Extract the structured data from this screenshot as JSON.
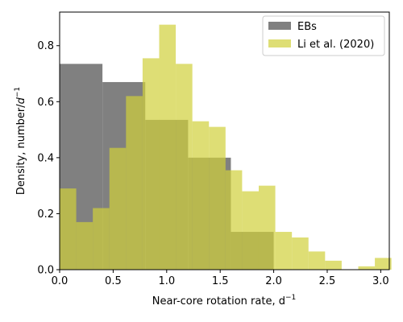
{
  "chart_data": {
    "type": "histogram",
    "xlabel": "Near-core rotation rate, d",
    "xlabel_sup": "−1",
    "ylabel": "Density, number/",
    "ylabel_sup_base": "d",
    "ylabel_sup": "−1",
    "xlim": [
      0.0,
      3.08
    ],
    "ylim": [
      0.0,
      0.92
    ],
    "xticks": [
      0.0,
      0.5,
      1.0,
      1.5,
      2.0,
      2.5,
      3.0
    ],
    "xtick_labels": [
      "0.0",
      "0.5",
      "1.0",
      "1.5",
      "2.0",
      "2.5",
      "3.0"
    ],
    "yticks": [
      0.0,
      0.2,
      0.4,
      0.6,
      0.8
    ],
    "ytick_labels": [
      "0.0",
      "0.2",
      "0.4",
      "0.6",
      "0.8"
    ],
    "grid": false,
    "legend_position": "top-right",
    "series": [
      {
        "name": "EBs",
        "color": "#808080",
        "bins": [
          {
            "x0": 0.0,
            "x1": 0.4,
            "y": 0.735
          },
          {
            "x0": 0.4,
            "x1": 0.8,
            "y": 0.67
          },
          {
            "x0": 0.8,
            "x1": 1.2,
            "y": 0.535
          },
          {
            "x0": 1.2,
            "x1": 1.6,
            "y": 0.4
          },
          {
            "x0": 1.6,
            "x1": 2.0,
            "y": 0.135
          }
        ]
      },
      {
        "name": "Li et al. (2020)",
        "color": "#d0d03a",
        "opacity": 0.7,
        "bins": [
          {
            "x0": 0.0,
            "x1": 0.155,
            "y": 0.29
          },
          {
            "x0": 0.155,
            "x1": 0.31,
            "y": 0.17
          },
          {
            "x0": 0.31,
            "x1": 0.465,
            "y": 0.22
          },
          {
            "x0": 0.465,
            "x1": 0.62,
            "y": 0.435
          },
          {
            "x0": 0.62,
            "x1": 0.775,
            "y": 0.62
          },
          {
            "x0": 0.775,
            "x1": 0.93,
            "y": 0.755
          },
          {
            "x0": 0.93,
            "x1": 1.085,
            "y": 0.875
          },
          {
            "x0": 1.085,
            "x1": 1.24,
            "y": 0.735
          },
          {
            "x0": 1.24,
            "x1": 1.395,
            "y": 0.53
          },
          {
            "x0": 1.395,
            "x1": 1.55,
            "y": 0.51
          },
          {
            "x0": 1.55,
            "x1": 1.705,
            "y": 0.355
          },
          {
            "x0": 1.705,
            "x1": 1.86,
            "y": 0.28
          },
          {
            "x0": 1.86,
            "x1": 2.015,
            "y": 0.3
          },
          {
            "x0": 2.015,
            "x1": 2.17,
            "y": 0.135
          },
          {
            "x0": 2.17,
            "x1": 2.325,
            "y": 0.115
          },
          {
            "x0": 2.325,
            "x1": 2.48,
            "y": 0.065
          },
          {
            "x0": 2.48,
            "x1": 2.635,
            "y": 0.032
          },
          {
            "x0": 2.635,
            "x1": 2.79,
            "y": 0.0
          },
          {
            "x0": 2.79,
            "x1": 2.945,
            "y": 0.012
          },
          {
            "x0": 2.945,
            "x1": 3.1,
            "y": 0.042
          }
        ]
      }
    ]
  }
}
